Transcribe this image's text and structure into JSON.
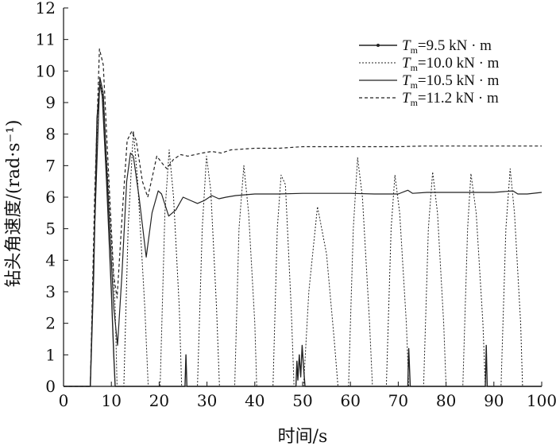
{
  "chart_data": {
    "type": "line",
    "title": "",
    "xlabel": "时间/s",
    "ylabel": "钻头角速度/(rad·s⁻¹)",
    "xlim": [
      0,
      100
    ],
    "ylim": [
      0,
      12
    ],
    "xticks": [
      0,
      10,
      20,
      30,
      40,
      50,
      60,
      70,
      80,
      90,
      100
    ],
    "yticks": [
      0,
      1,
      2,
      3,
      4,
      5,
      6,
      7,
      8,
      9,
      10,
      11,
      12
    ],
    "grid": false,
    "legend_position": "top-right",
    "series": [
      {
        "name": "Tm=9.5 kN·m",
        "legend": {
          "italic": "T",
          "sub": "m",
          "rest": "=9.5 kN · m"
        },
        "style": "solid-thin-dots",
        "color": "#222222",
        "points": [
          [
            0,
            0
          ],
          [
            5.6,
            0
          ],
          [
            6.3,
            3.5
          ],
          [
            7,
            8.5
          ],
          [
            7.6,
            9.6
          ],
          [
            8.1,
            9.2
          ],
          [
            9,
            6.5
          ],
          [
            10,
            3
          ],
          [
            10.5,
            1
          ],
          [
            10.8,
            0
          ],
          [
            25.4,
            0
          ],
          [
            25.6,
            1.0
          ],
          [
            25.8,
            0
          ],
          [
            48.6,
            0
          ],
          [
            48.8,
            0.8
          ],
          [
            49,
            0.2
          ],
          [
            49.3,
            1.0
          ],
          [
            49.6,
            0.3
          ],
          [
            49.9,
            1.3
          ],
          [
            50.2,
            0.6
          ],
          [
            50.5,
            0
          ],
          [
            72,
            0
          ],
          [
            72.2,
            1.2
          ],
          [
            72.5,
            0
          ],
          [
            88.2,
            0
          ],
          [
            88.4,
            1.3
          ],
          [
            88.6,
            0
          ],
          [
            100,
            0
          ]
        ]
      },
      {
        "name": "Tm=10.0 kN·m",
        "legend": {
          "italic": "T",
          "sub": "m",
          "rest": "=10.0 kN · m"
        },
        "style": "dotted",
        "color": "#222222",
        "points": [
          [
            0,
            0
          ],
          [
            5.6,
            0
          ],
          [
            6.5,
            5
          ],
          [
            7.5,
            9.7
          ],
          [
            8.2,
            9.3
          ],
          [
            9.5,
            6
          ],
          [
            10.8,
            2.5
          ],
          [
            11.2,
            0
          ],
          [
            12.6,
            0
          ],
          [
            13.5,
            5
          ],
          [
            14.6,
            8.1
          ],
          [
            15.5,
            6.5
          ],
          [
            17,
            2.5
          ],
          [
            17.7,
            0
          ],
          [
            20.2,
            0
          ],
          [
            21.2,
            5.5
          ],
          [
            22.1,
            7.5
          ],
          [
            23,
            6
          ],
          [
            24.2,
            2.5
          ],
          [
            24.7,
            0
          ],
          [
            28,
            0
          ],
          [
            29,
            5
          ],
          [
            29.9,
            7.3
          ],
          [
            30.8,
            6.2
          ],
          [
            32,
            2.5
          ],
          [
            32.6,
            0
          ],
          [
            35.8,
            0
          ],
          [
            36.7,
            5
          ],
          [
            37.7,
            7.0
          ],
          [
            38.7,
            5.5
          ],
          [
            40,
            2
          ],
          [
            40.4,
            0
          ],
          [
            43.8,
            0
          ],
          [
            44.7,
            5
          ],
          [
            45.5,
            6.7
          ],
          [
            46.4,
            6.4
          ],
          [
            47.6,
            2.5
          ],
          [
            48.2,
            0
          ],
          [
            50.2,
            0
          ],
          [
            51.3,
            3
          ],
          [
            53.1,
            5.7
          ],
          [
            55,
            4.2
          ],
          [
            56.6,
            1.5
          ],
          [
            57.4,
            0
          ],
          [
            59.6,
            0
          ],
          [
            60.6,
            5
          ],
          [
            61.5,
            7.25
          ],
          [
            62.5,
            6
          ],
          [
            64,
            2
          ],
          [
            64.6,
            0
          ],
          [
            67.5,
            0
          ],
          [
            68.5,
            5
          ],
          [
            69.3,
            6.7
          ],
          [
            70.3,
            5.5
          ],
          [
            71.7,
            2
          ],
          [
            72.2,
            0
          ],
          [
            75.3,
            0
          ],
          [
            76.3,
            5
          ],
          [
            77.2,
            6.8
          ],
          [
            78.2,
            5.5
          ],
          [
            79.5,
            2
          ],
          [
            80,
            0
          ],
          [
            83.5,
            0
          ],
          [
            84.5,
            5
          ],
          [
            85.2,
            6.75
          ],
          [
            86.3,
            5.5
          ],
          [
            87.7,
            2
          ],
          [
            88.2,
            0
          ],
          [
            91.5,
            0
          ],
          [
            92.5,
            5
          ],
          [
            93.4,
            6.9
          ],
          [
            94.3,
            5.5
          ],
          [
            95.6,
            2
          ],
          [
            96,
            0
          ],
          [
            100,
            0
          ]
        ]
      },
      {
        "name": "Tm=10.5 kN·m",
        "legend": {
          "italic": "T",
          "sub": "m",
          "rest": "=10.5 kN · m"
        },
        "style": "solid",
        "color": "#222222",
        "points": [
          [
            0,
            0
          ],
          [
            5.6,
            0
          ],
          [
            6.5,
            5
          ],
          [
            7.6,
            9.8
          ],
          [
            8.3,
            9.3
          ],
          [
            9.5,
            5.5
          ],
          [
            10.5,
            2.5
          ],
          [
            11.3,
            1.3
          ],
          [
            12.2,
            3.5
          ],
          [
            13.2,
            6.5
          ],
          [
            14,
            7.4
          ],
          [
            14.6,
            7.3
          ],
          [
            15.8,
            6
          ],
          [
            17.3,
            4.1
          ],
          [
            18.5,
            5.5
          ],
          [
            19.8,
            6.2
          ],
          [
            20.5,
            6.1
          ],
          [
            22,
            5.4
          ],
          [
            23.5,
            5.6
          ],
          [
            25,
            6.0
          ],
          [
            26.5,
            5.9
          ],
          [
            28,
            5.8
          ],
          [
            29.5,
            5.9
          ],
          [
            31,
            6.05
          ],
          [
            32.5,
            5.95
          ],
          [
            34,
            6.0
          ],
          [
            36,
            6.05
          ],
          [
            40,
            6.1
          ],
          [
            45,
            6.1
          ],
          [
            50,
            6.12
          ],
          [
            55,
            6.12
          ],
          [
            60,
            6.12
          ],
          [
            65,
            6.1
          ],
          [
            70,
            6.1
          ],
          [
            72,
            6.22
          ],
          [
            73,
            6.12
          ],
          [
            76,
            6.15
          ],
          [
            80,
            6.15
          ],
          [
            85,
            6.15
          ],
          [
            90,
            6.15
          ],
          [
            94,
            6.2
          ],
          [
            95,
            6.1
          ],
          [
            97,
            6.1
          ],
          [
            100,
            6.15
          ]
        ]
      },
      {
        "name": "Tm=11.2 kN·m",
        "legend": {
          "italic": "T",
          "sub": "m",
          "rest": "=11.2 kN · m"
        },
        "style": "dashed",
        "color": "#222222",
        "points": [
          [
            0,
            0
          ],
          [
            5.6,
            0
          ],
          [
            6.5,
            6
          ],
          [
            7.5,
            10.7
          ],
          [
            8.3,
            10.2
          ],
          [
            9.5,
            6.5
          ],
          [
            10.5,
            3.5
          ],
          [
            11.2,
            2.8
          ],
          [
            12.3,
            5.5
          ],
          [
            13.3,
            7.8
          ],
          [
            14.3,
            8.1
          ],
          [
            15.2,
            7.8
          ],
          [
            16.5,
            6.5
          ],
          [
            17.6,
            6.0
          ],
          [
            18.5,
            6.6
          ],
          [
            19.5,
            7.3
          ],
          [
            20.5,
            7.1
          ],
          [
            21.6,
            6.9
          ],
          [
            23,
            7.2
          ],
          [
            24.5,
            7.35
          ],
          [
            26,
            7.3
          ],
          [
            27.5,
            7.35
          ],
          [
            29,
            7.4
          ],
          [
            31,
            7.45
          ],
          [
            33,
            7.4
          ],
          [
            35,
            7.5
          ],
          [
            40,
            7.55
          ],
          [
            45,
            7.55
          ],
          [
            50,
            7.6
          ],
          [
            55,
            7.6
          ],
          [
            60,
            7.6
          ],
          [
            65,
            7.6
          ],
          [
            70,
            7.6
          ],
          [
            75,
            7.62
          ],
          [
            80,
            7.62
          ],
          [
            85,
            7.62
          ],
          [
            90,
            7.62
          ],
          [
            95,
            7.62
          ],
          [
            100,
            7.62
          ]
        ]
      }
    ]
  }
}
